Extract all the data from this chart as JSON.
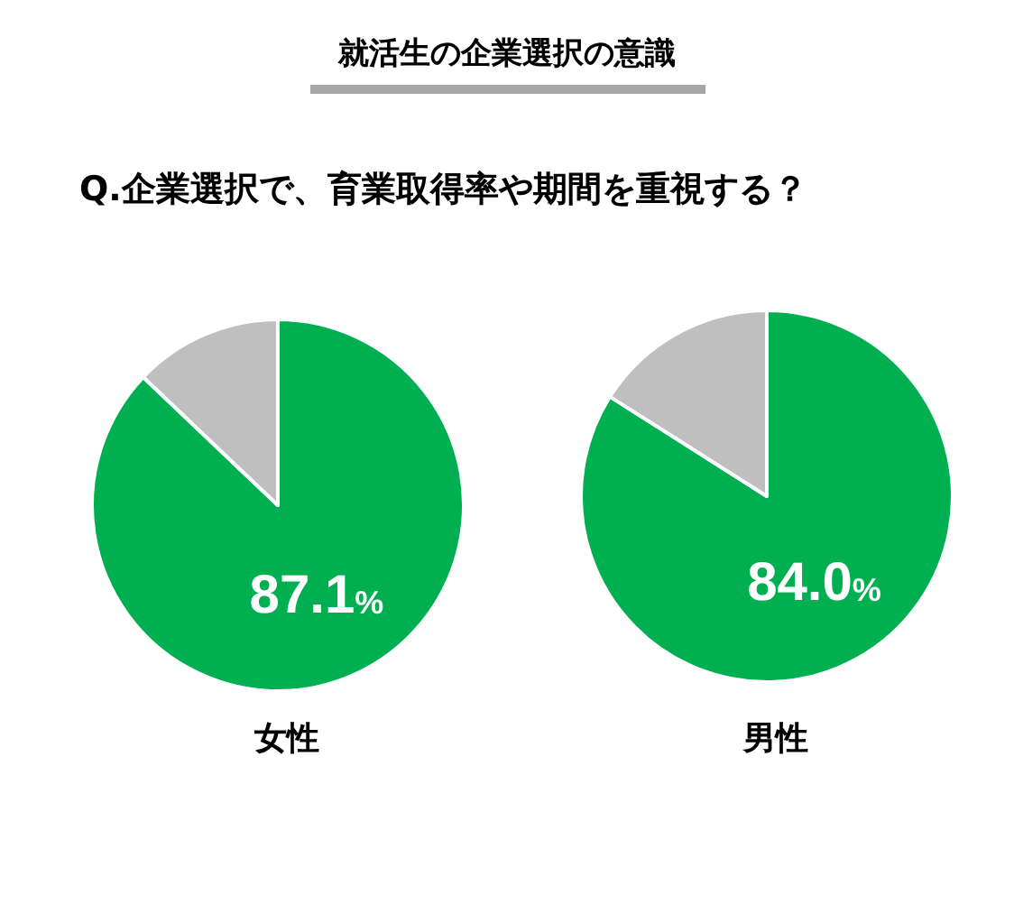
{
  "chart_data": [
    {
      "type": "pie",
      "title": "就活生の企業選択の意識",
      "subtitle": "Q.企業選択で、育業取得率や期間を重視する？",
      "categories": [
        null,
        null
      ],
      "values": [
        87.1,
        12.9
      ],
      "colors": [
        "#00b050",
        "#bfbfbf"
      ],
      "value_labels": [
        "87.1%",
        null
      ],
      "xlabel": "女性"
    },
    {
      "type": "pie",
      "categories": [
        null,
        null
      ],
      "values": [
        84.0,
        16.0
      ],
      "colors": [
        "#00b050",
        "#bfbfbf"
      ],
      "value_labels": [
        "84.0%",
        null
      ],
      "xlabel": "男性"
    }
  ]
}
